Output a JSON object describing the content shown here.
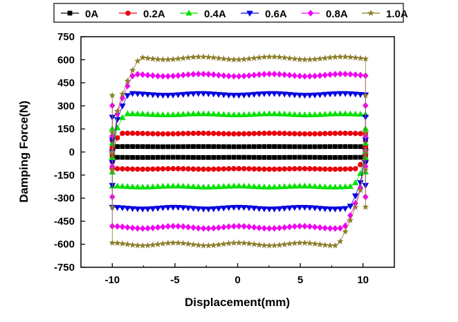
{
  "chart_data": {
    "type": "scatter",
    "title": "",
    "xlabel": "Displacement(mm)",
    "ylabel": "Damping Force(N)",
    "xlim": [
      -12.5,
      12.5
    ],
    "ylim": [
      -750,
      750
    ],
    "xticks": [
      -10,
      -5,
      0,
      5,
      10
    ],
    "yticks": [
      750,
      600,
      450,
      300,
      150,
      0,
      -150,
      -300,
      -450,
      -600,
      -750
    ],
    "xtick_labels": [
      "-10",
      "-5",
      "0",
      "5",
      "10"
    ],
    "ytick_labels": [
      "750",
      "600",
      "450",
      "300",
      "150",
      "0",
      "-150",
      "-300",
      "-450",
      "-600",
      "-750"
    ],
    "grid": false,
    "legend_position": "top",
    "series": [
      {
        "name": "0A",
        "color": "#000000",
        "marker": "square",
        "upper": 35,
        "lower": -35,
        "knee": 0.4
      },
      {
        "name": "0.2A",
        "color": "#e8000b",
        "marker": "circle",
        "upper": 120,
        "lower": -110,
        "knee": 0.7
      },
      {
        "name": "0.4A",
        "color": "#00e000",
        "marker": "triangle-up",
        "upper": 245,
        "lower": -225,
        "knee": 1.0
      },
      {
        "name": "0.6A",
        "color": "#0000e0",
        "marker": "triangle-down",
        "upper": 375,
        "lower": -365,
        "knee": 1.3
      },
      {
        "name": "0.8A",
        "color": "#f000f0",
        "marker": "diamond",
        "upper": 500,
        "lower": -490,
        "knee": 1.7
      },
      {
        "name": "1.0A",
        "color": "#8b7d2a",
        "marker": "star",
        "upper": 610,
        "lower": -600,
        "knee": 2.2
      }
    ]
  }
}
